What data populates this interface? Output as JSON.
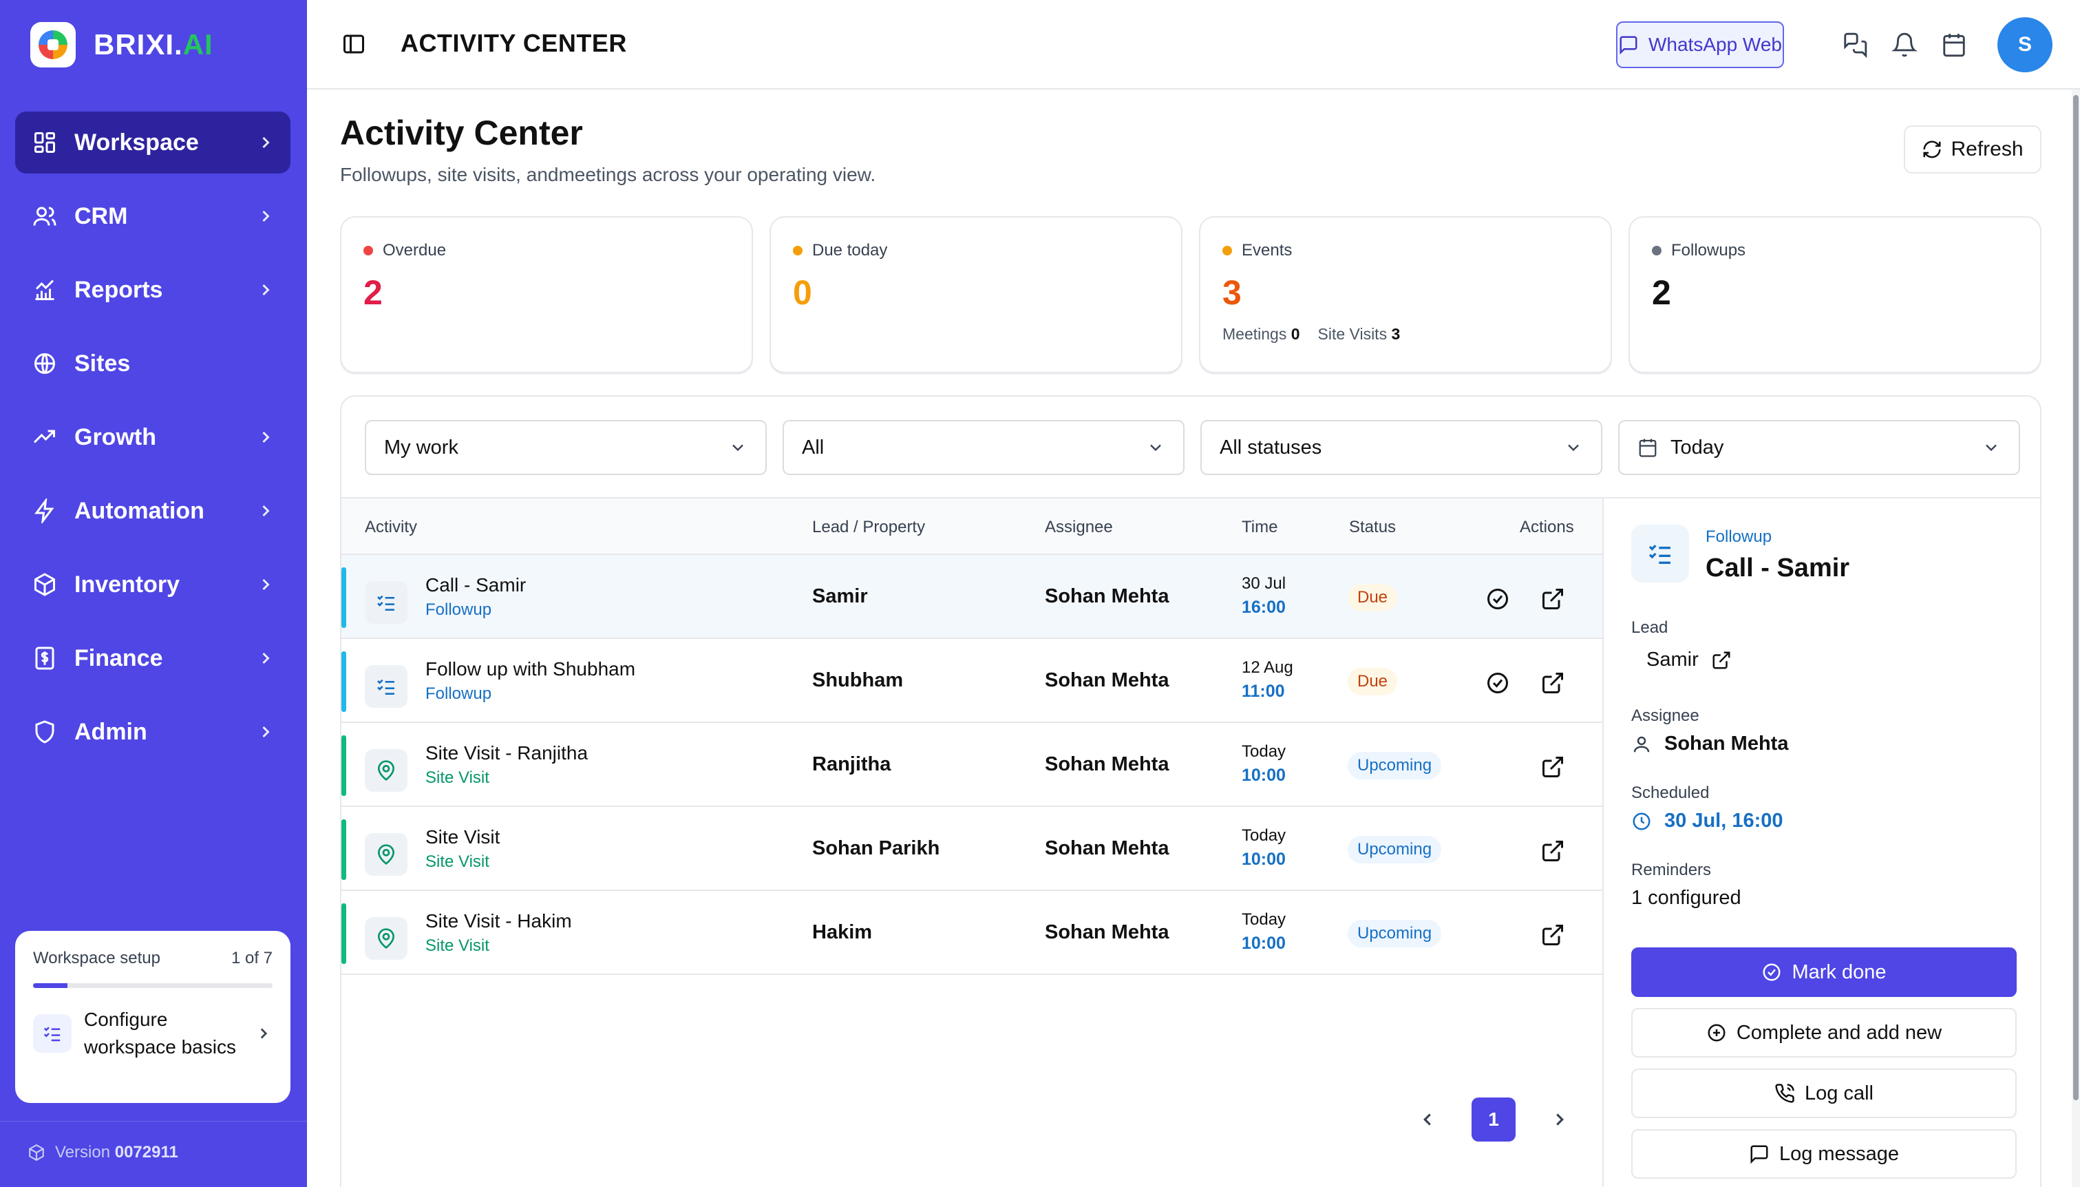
{
  "brand": {
    "name": "BRIXI.",
    "suffix": "AI"
  },
  "sidebar": {
    "items": [
      {
        "label": "Workspace",
        "icon": "grid-icon"
      },
      {
        "label": "CRM",
        "icon": "users-icon"
      },
      {
        "label": "Reports",
        "icon": "chart-icon"
      },
      {
        "label": "Sites",
        "icon": "globe-icon"
      },
      {
        "label": "Growth",
        "icon": "trend-icon"
      },
      {
        "label": "Automation",
        "icon": "bolt-icon"
      },
      {
        "label": "Inventory",
        "icon": "box-icon"
      },
      {
        "label": "Finance",
        "icon": "dollar-icon"
      },
      {
        "label": "Admin",
        "icon": "shield-icon"
      }
    ],
    "setup": {
      "title": "Workspace setup",
      "progress_text": "1 of 7",
      "progress": 0.143,
      "item_label": "Configure workspace basics"
    },
    "version_label": "Version",
    "version_value": "0072911"
  },
  "topbar": {
    "title": "ACTIVITY CENTER",
    "whatsapp_label": "WhatsApp Web",
    "avatar_initial": "S"
  },
  "page": {
    "title": "Activity Center",
    "subtitle": "Followups, site visits, andmeetings across your operating view.",
    "refresh_label": "Refresh"
  },
  "stats": [
    {
      "label": "Overdue",
      "value": "2",
      "color": "#e11d48",
      "dot": "#ef4444"
    },
    {
      "label": "Due today",
      "value": "0",
      "color": "#f59e0b",
      "dot": "#f59e0b"
    },
    {
      "label": "Events",
      "value": "3",
      "color": "#ea580c",
      "dot": "#f59e0b",
      "sub": [
        {
          "label": "Meetings",
          "value": "0"
        },
        {
          "label": "Site Visits",
          "value": "3"
        }
      ]
    },
    {
      "label": "Followups",
      "value": "2",
      "color": "#111111",
      "dot": "#6b7280"
    }
  ],
  "filters": {
    "scope": "My work",
    "type": "All",
    "status": "All statuses",
    "date": "Today"
  },
  "table": {
    "headers": {
      "activity": "Activity",
      "lead": "Lead / Property",
      "assignee": "Assignee",
      "time": "Time",
      "status": "Status",
      "actions": "Actions"
    },
    "rows": [
      {
        "name": "Call - Samir",
        "type": "Followup",
        "lead": "Samir",
        "assignee": "Sohan Mehta",
        "date": "30 Jul",
        "time": "16:00",
        "status": "Due"
      },
      {
        "name": "Follow up with Shubham",
        "type": "Followup",
        "lead": "Shubham",
        "assignee": "Sohan Mehta",
        "date": "12 Aug",
        "time": "11:00",
        "status": "Due"
      },
      {
        "name": "Site Visit - Ranjitha",
        "type": "Site Visit",
        "lead": "Ranjitha",
        "assignee": "Sohan Mehta",
        "date": "Today",
        "time": "10:00",
        "status": "Upcoming"
      },
      {
        "name": "Site Visit",
        "type": "Site Visit",
        "lead": "Sohan Parikh",
        "assignee": "Sohan Mehta",
        "date": "Today",
        "time": "10:00",
        "status": "Upcoming"
      },
      {
        "name": "Site Visit - Hakim",
        "type": "Site Visit",
        "lead": "Hakim",
        "assignee": "Sohan Mehta",
        "date": "Today",
        "time": "10:00",
        "status": "Upcoming"
      }
    ],
    "page": "1"
  },
  "detail": {
    "type": "Followup",
    "name": "Call - Samir",
    "lead_label": "Lead",
    "lead_value": "Samir",
    "assignee_label": "Assignee",
    "assignee_value": "Sohan Mehta",
    "scheduled_label": "Scheduled",
    "scheduled_value": "30 Jul, 16:00",
    "reminders_label": "Reminders",
    "reminders_value": "1 configured",
    "buttons": {
      "mark_done": "Mark done",
      "complete_add": "Complete and add new",
      "log_call": "Log call",
      "log_message": "Log message"
    }
  },
  "colors": {
    "primary": "#4f46e5",
    "followup_accent": "#22b8e8",
    "sitevisit_accent": "#10b981",
    "followup_text": "#1670c4",
    "sitevisit_text": "#059669"
  }
}
